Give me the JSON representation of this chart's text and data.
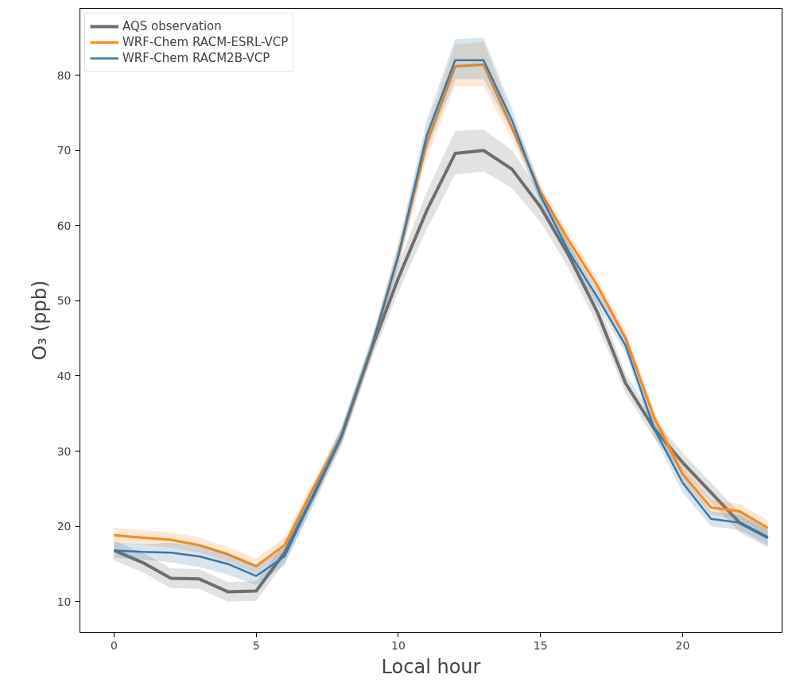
{
  "chart_data": {
    "type": "line",
    "xlabel": "Local hour",
    "ylabel": "O₃ (ppb)",
    "x": [
      0,
      1,
      2,
      3,
      4,
      5,
      6,
      7,
      8,
      9,
      10,
      11,
      12,
      13,
      14,
      15,
      16,
      17,
      18,
      19,
      20,
      21,
      22,
      23
    ],
    "xlim": [
      -1.2,
      23.5
    ],
    "ylim": [
      5.9,
      88.9
    ],
    "xticks": [
      0,
      5,
      10,
      15,
      20
    ],
    "yticks": [
      10,
      20,
      30,
      40,
      50,
      60,
      70,
      80
    ],
    "grid": false,
    "legend": "top left",
    "line_style": "solid",
    "series": [
      {
        "name": "AQS observation",
        "color": "#6e6e6e",
        "values": [
          16.8,
          15.2,
          13.1,
          13.0,
          11.3,
          11.4,
          16.5,
          24,
          32,
          43,
          53,
          62,
          69.6,
          70,
          67.5,
          62.5,
          56,
          48.5,
          39,
          33,
          28.5,
          24.5,
          20.5,
          18.5
        ],
        "lower": [
          15.5,
          13.9,
          11.8,
          11.7,
          10,
          10.1,
          15.2,
          22.7,
          30.7,
          41.7,
          51.2,
          59.5,
          66.8,
          67.2,
          65,
          60.5,
          54.3,
          46.8,
          37.7,
          31.7,
          27.2,
          23.2,
          19.2,
          17.2
        ],
        "upper": [
          18.1,
          16.5,
          14.4,
          14.3,
          12.6,
          12.7,
          17.8,
          25.3,
          33.3,
          44.3,
          54.8,
          64.5,
          72.6,
          72.8,
          70,
          64.5,
          57.7,
          50.2,
          40.3,
          34.3,
          29.8,
          25.8,
          21.8,
          19.8
        ]
      },
      {
        "name": "WRF-Chem RACM-ESRL-VCP",
        "color": "#f28e2b",
        "values": [
          18.8,
          18.5,
          18.2,
          17.5,
          16.3,
          14.7,
          17.5,
          25,
          32,
          43,
          56,
          71,
          81.2,
          81.4,
          73,
          64.5,
          58,
          52,
          45,
          34.5,
          27,
          22.5,
          22,
          19.8
        ],
        "lower": [
          17.8,
          17.5,
          17.2,
          16.5,
          15.3,
          13.7,
          16.5,
          24,
          31,
          42,
          54.5,
          69,
          78.5,
          78.5,
          71.5,
          63.5,
          57,
          51,
          44,
          33.5,
          26,
          21.5,
          21,
          18.8
        ],
        "upper": [
          19.8,
          19.5,
          19.2,
          18.5,
          17.3,
          15.7,
          18.5,
          26,
          33,
          44,
          57.5,
          73,
          84,
          84.5,
          74.5,
          65.5,
          59,
          53,
          46,
          35.5,
          28,
          23.5,
          23,
          20.8
        ]
      },
      {
        "name": "WRF-Chem RACM2B-VCP",
        "color": "#3a78a8",
        "values": [
          16.8,
          16.6,
          16.5,
          16,
          15,
          13.4,
          16,
          24,
          32,
          43,
          56,
          72,
          82,
          82,
          74,
          64,
          56.5,
          50.5,
          44,
          33,
          25.8,
          21,
          20.5,
          18.5
        ],
        "lower": [
          15.8,
          15.6,
          15.2,
          14.6,
          13.6,
          12.2,
          14.8,
          23,
          31,
          42,
          54.5,
          70,
          79.5,
          79.5,
          72.5,
          63,
          55.5,
          49.5,
          43,
          32,
          24.5,
          20,
          19.5,
          17.5
        ],
        "upper": [
          17.8,
          17.6,
          17.8,
          17.4,
          16.4,
          14.6,
          17.2,
          25,
          33,
          44,
          57.5,
          74,
          84.8,
          85,
          75.5,
          65,
          57.5,
          51.5,
          45,
          34,
          27,
          22,
          21.5,
          19.5
        ]
      }
    ]
  }
}
